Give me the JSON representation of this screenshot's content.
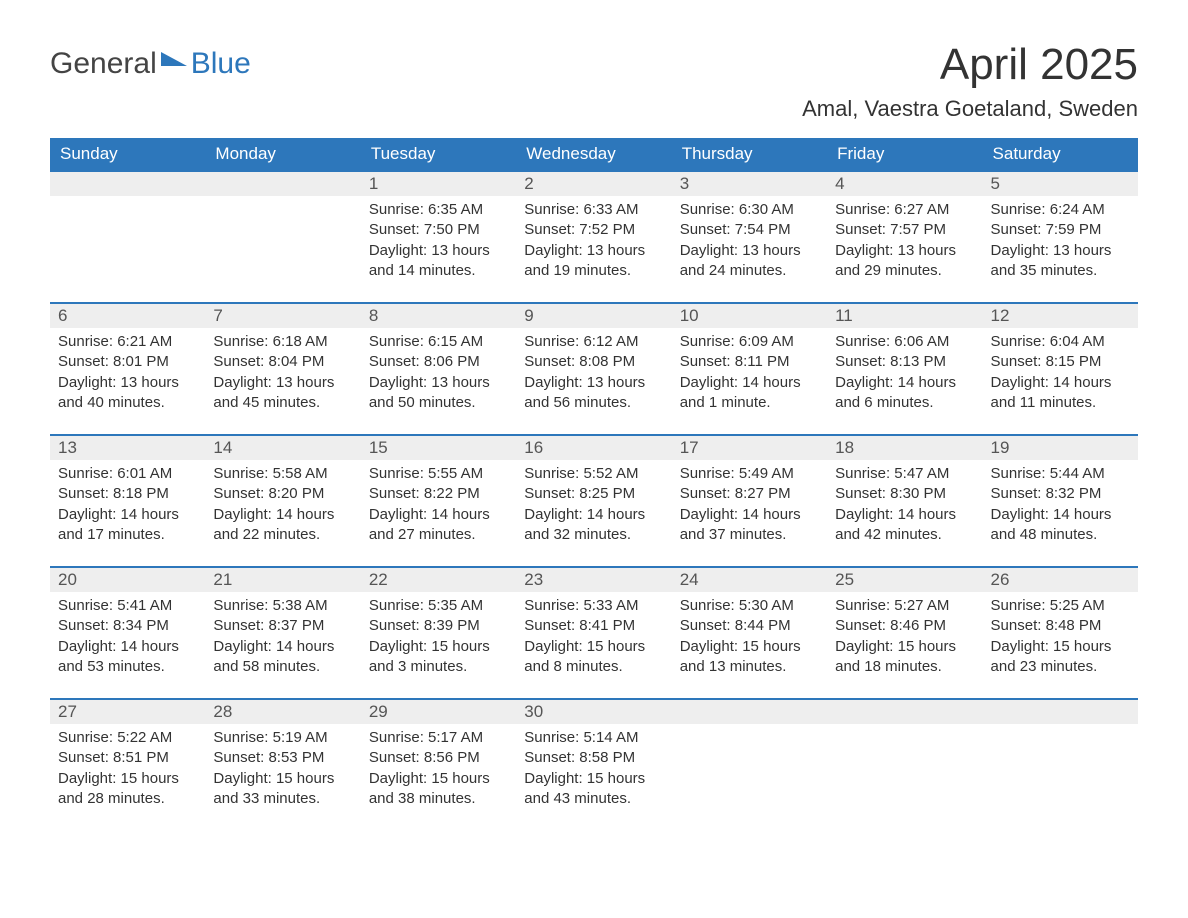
{
  "logo": {
    "general": "General",
    "blue": "Blue"
  },
  "title": "April 2025",
  "location": "Amal, Vaestra Goetaland, Sweden",
  "colors": {
    "brand": "#2d77bb",
    "text": "#333333",
    "daynum_bg": "#eeeeee",
    "background": "#ffffff"
  },
  "layout": {
    "columns": 7,
    "font_family": "Segoe UI, Arial, sans-serif",
    "title_fontsize": 44,
    "location_fontsize": 22,
    "dow_fontsize": 17,
    "body_fontsize": 15
  },
  "days_of_week": [
    "Sunday",
    "Monday",
    "Tuesday",
    "Wednesday",
    "Thursday",
    "Friday",
    "Saturday"
  ],
  "weeks": [
    [
      {
        "empty": true
      },
      {
        "empty": true
      },
      {
        "num": "1",
        "sunrise": "6:35 AM",
        "sunset": "7:50 PM",
        "daylight": "13 hours and 14 minutes."
      },
      {
        "num": "2",
        "sunrise": "6:33 AM",
        "sunset": "7:52 PM",
        "daylight": "13 hours and 19 minutes."
      },
      {
        "num": "3",
        "sunrise": "6:30 AM",
        "sunset": "7:54 PM",
        "daylight": "13 hours and 24 minutes."
      },
      {
        "num": "4",
        "sunrise": "6:27 AM",
        "sunset": "7:57 PM",
        "daylight": "13 hours and 29 minutes."
      },
      {
        "num": "5",
        "sunrise": "6:24 AM",
        "sunset": "7:59 PM",
        "daylight": "13 hours and 35 minutes."
      }
    ],
    [
      {
        "num": "6",
        "sunrise": "6:21 AM",
        "sunset": "8:01 PM",
        "daylight": "13 hours and 40 minutes."
      },
      {
        "num": "7",
        "sunrise": "6:18 AM",
        "sunset": "8:04 PM",
        "daylight": "13 hours and 45 minutes."
      },
      {
        "num": "8",
        "sunrise": "6:15 AM",
        "sunset": "8:06 PM",
        "daylight": "13 hours and 50 minutes."
      },
      {
        "num": "9",
        "sunrise": "6:12 AM",
        "sunset": "8:08 PM",
        "daylight": "13 hours and 56 minutes."
      },
      {
        "num": "10",
        "sunrise": "6:09 AM",
        "sunset": "8:11 PM",
        "daylight": "14 hours and 1 minute."
      },
      {
        "num": "11",
        "sunrise": "6:06 AM",
        "sunset": "8:13 PM",
        "daylight": "14 hours and 6 minutes."
      },
      {
        "num": "12",
        "sunrise": "6:04 AM",
        "sunset": "8:15 PM",
        "daylight": "14 hours and 11 minutes."
      }
    ],
    [
      {
        "num": "13",
        "sunrise": "6:01 AM",
        "sunset": "8:18 PM",
        "daylight": "14 hours and 17 minutes."
      },
      {
        "num": "14",
        "sunrise": "5:58 AM",
        "sunset": "8:20 PM",
        "daylight": "14 hours and 22 minutes."
      },
      {
        "num": "15",
        "sunrise": "5:55 AM",
        "sunset": "8:22 PM",
        "daylight": "14 hours and 27 minutes."
      },
      {
        "num": "16",
        "sunrise": "5:52 AM",
        "sunset": "8:25 PM",
        "daylight": "14 hours and 32 minutes."
      },
      {
        "num": "17",
        "sunrise": "5:49 AM",
        "sunset": "8:27 PM",
        "daylight": "14 hours and 37 minutes."
      },
      {
        "num": "18",
        "sunrise": "5:47 AM",
        "sunset": "8:30 PM",
        "daylight": "14 hours and 42 minutes."
      },
      {
        "num": "19",
        "sunrise": "5:44 AM",
        "sunset": "8:32 PM",
        "daylight": "14 hours and 48 minutes."
      }
    ],
    [
      {
        "num": "20",
        "sunrise": "5:41 AM",
        "sunset": "8:34 PM",
        "daylight": "14 hours and 53 minutes."
      },
      {
        "num": "21",
        "sunrise": "5:38 AM",
        "sunset": "8:37 PM",
        "daylight": "14 hours and 58 minutes."
      },
      {
        "num": "22",
        "sunrise": "5:35 AM",
        "sunset": "8:39 PM",
        "daylight": "15 hours and 3 minutes."
      },
      {
        "num": "23",
        "sunrise": "5:33 AM",
        "sunset": "8:41 PM",
        "daylight": "15 hours and 8 minutes."
      },
      {
        "num": "24",
        "sunrise": "5:30 AM",
        "sunset": "8:44 PM",
        "daylight": "15 hours and 13 minutes."
      },
      {
        "num": "25",
        "sunrise": "5:27 AM",
        "sunset": "8:46 PM",
        "daylight": "15 hours and 18 minutes."
      },
      {
        "num": "26",
        "sunrise": "5:25 AM",
        "sunset": "8:48 PM",
        "daylight": "15 hours and 23 minutes."
      }
    ],
    [
      {
        "num": "27",
        "sunrise": "5:22 AM",
        "sunset": "8:51 PM",
        "daylight": "15 hours and 28 minutes."
      },
      {
        "num": "28",
        "sunrise": "5:19 AM",
        "sunset": "8:53 PM",
        "daylight": "15 hours and 33 minutes."
      },
      {
        "num": "29",
        "sunrise": "5:17 AM",
        "sunset": "8:56 PM",
        "daylight": "15 hours and 38 minutes."
      },
      {
        "num": "30",
        "sunrise": "5:14 AM",
        "sunset": "8:58 PM",
        "daylight": "15 hours and 43 minutes."
      },
      {
        "empty": true
      },
      {
        "empty": true
      },
      {
        "empty": true
      }
    ]
  ],
  "labels": {
    "sunrise": "Sunrise: ",
    "sunset": "Sunset: ",
    "daylight": "Daylight: "
  }
}
